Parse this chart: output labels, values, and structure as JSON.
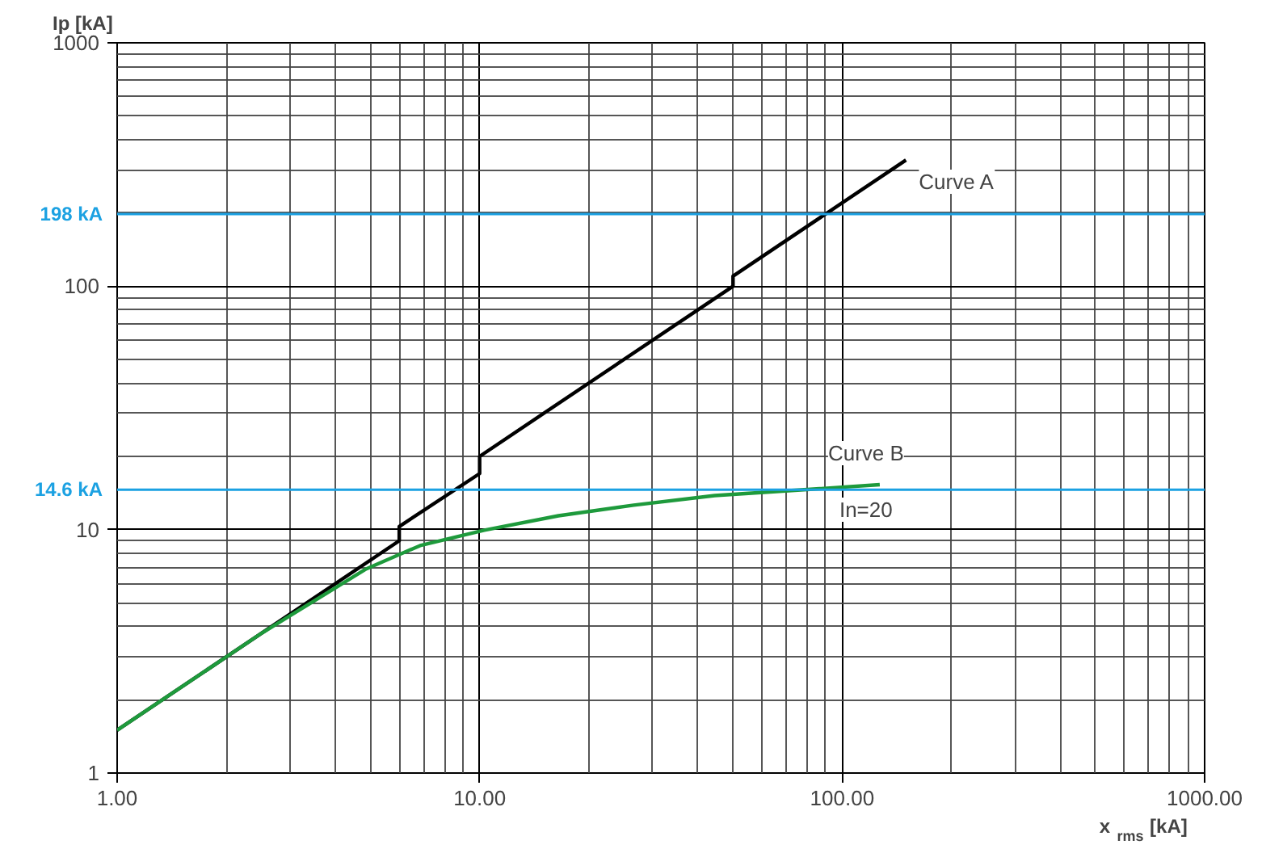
{
  "chart_data": {
    "type": "line",
    "ylabel": "Ip [kA]",
    "xlabel": "x $_{rms}$ [kA]",
    "log": "xy",
    "grid": true,
    "marker": "none",
    "line_style": "solid",
    "xlim": [
      1,
      1000
    ],
    "ylim": [
      1,
      1000
    ],
    "xticks": [
      {
        "value": 1,
        "label": "1.00"
      },
      {
        "value": 10,
        "label": "10.00"
      },
      {
        "value": 100,
        "label": "100.00"
      },
      {
        "value": 1000,
        "label": "1000.00"
      }
    ],
    "yticks": [
      1,
      10,
      100,
      1000
    ],
    "series": [
      {
        "name": "Curve A",
        "color": "#000000",
        "x": [
          1,
          6,
          6,
          10,
          10,
          50,
          50,
          150
        ],
        "values": [
          1.5,
          9,
          10.3,
          17,
          20,
          100,
          110,
          330
        ]
      },
      {
        "name": "Curve B",
        "color": "#1e9a3c",
        "x": [
          1,
          2,
          2.5,
          3.46,
          4.87,
          6.85,
          10.3,
          16.5,
          26.6,
          44.5,
          74,
          127
        ],
        "values": [
          1.5,
          3,
          3.75,
          5.05,
          6.9,
          8.6,
          9.95,
          11.4,
          12.6,
          13.8,
          14.5,
          15.3
        ]
      }
    ],
    "ref_lines": [
      {
        "axis": "y",
        "value": 198,
        "label": "198 kA",
        "color": "#1ba1e2"
      },
      {
        "axis": "y",
        "value": 14.6,
        "label": "14.6 kA",
        "color": "#1ba1e2"
      }
    ],
    "annotations": [
      "In=20"
    ]
  }
}
